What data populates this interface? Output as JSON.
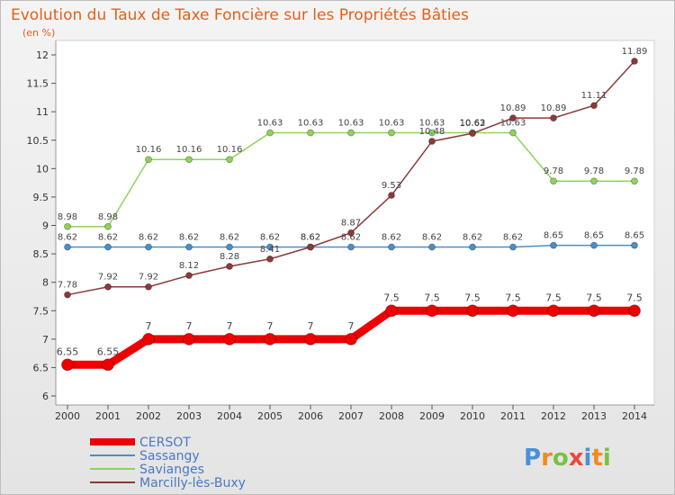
{
  "header": {
    "title": "Evolution du Taux de Taxe Foncière sur les Propriétés Bâties",
    "unit": "(en %)"
  },
  "brand": {
    "letters": [
      "P",
      "r",
      "o",
      "x",
      "i",
      "t",
      "i"
    ],
    "colors": [
      "#4a90d9",
      "#f08c1e",
      "#7ac142",
      "#e84a3c",
      "#4a90d9",
      "#f08c1e",
      "#7ac142"
    ]
  },
  "chart_data": {
    "type": "line",
    "title": "Evolution du Taux de Taxe Foncière sur les Propriétés Bâties",
    "ylabel": "(en %)",
    "xlabel": "",
    "x": [
      "2000",
      "2001",
      "2002",
      "2003",
      "2004",
      "2005",
      "2006",
      "2007",
      "2008",
      "2009",
      "2010",
      "2011",
      "2012",
      "2013",
      "2014"
    ],
    "ylim": [
      6,
      12
    ],
    "yticks": [
      "6",
      "6.5",
      "7",
      "7.5",
      "8",
      "8.5",
      "9",
      "9.5",
      "10",
      "10.5",
      "11",
      "11.5",
      "12"
    ],
    "grid": false,
    "legend": "bottom-left",
    "series": [
      {
        "name": "CERSOT",
        "color": "#ee0000",
        "values": [
          6.55,
          6.55,
          7,
          7,
          7,
          7,
          7,
          7,
          7.5,
          7.5,
          7.5,
          7.5,
          7.5,
          7.5,
          7.5
        ],
        "labels": [
          "6.55",
          "6.55",
          "7",
          "7",
          "7",
          "7",
          "7",
          "7",
          "7.5",
          "7.5",
          "7.5",
          "7.5",
          "7.5",
          "7.5",
          "7.5"
        ]
      },
      {
        "name": "Sassangy",
        "color": "#4a8fc7",
        "values": [
          8.62,
          8.62,
          8.62,
          8.62,
          8.62,
          8.62,
          8.62,
          8.62,
          8.62,
          8.62,
          8.62,
          8.62,
          8.65,
          8.65,
          8.65
        ],
        "labels": [
          "8.62",
          "8.62",
          "8.62",
          "8.62",
          "8.62",
          "8.62",
          "8.62",
          "8.62",
          "8.62",
          "8.62",
          "8.62",
          "8.62",
          "8.65",
          "8.65",
          "8.65"
        ]
      },
      {
        "name": "Savianges",
        "color": "#8ed35a",
        "values": [
          8.98,
          8.98,
          10.16,
          10.16,
          10.16,
          10.63,
          10.63,
          10.63,
          10.63,
          10.63,
          10.63,
          10.63,
          9.78,
          9.78,
          9.78
        ],
        "labels": [
          "8.98",
          "8.98",
          "10.16",
          "10.16",
          "10.16",
          "10.63",
          "10.63",
          "10.63",
          "10.63",
          "10.63",
          "10.63",
          "10.63",
          "9.78",
          "9.78",
          "9.78"
        ]
      },
      {
        "name": "Marcilly-lès-Buxy",
        "color": "#8b3a3a",
        "values": [
          7.78,
          7.92,
          7.92,
          8.12,
          8.28,
          8.41,
          8.62,
          8.87,
          9.53,
          10.48,
          10.62,
          10.89,
          10.89,
          11.11,
          11.89
        ],
        "labels": [
          "7.78",
          "7.92",
          "7.92",
          "8.12",
          "8.28",
          "8.41",
          "8.62",
          "8.87",
          "9.53",
          "10.48",
          "10.62",
          "10.89",
          "10.89",
          "11.11",
          "11.89"
        ]
      }
    ]
  }
}
